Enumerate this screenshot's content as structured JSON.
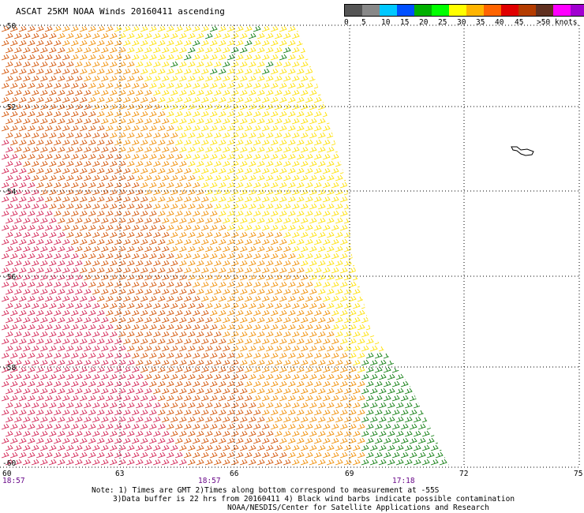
{
  "title": "ASCAT 25KM NOAA Winds 20160411 ascending",
  "legend": {
    "colors": [
      "#555555",
      "#888888",
      "#00c8ff",
      "#0050ff",
      "#00b000",
      "#00ff00",
      "#ffff00",
      "#ffb400",
      "#ff6400",
      "#e00000",
      "#b43c00",
      "#603020",
      "#ff00ff",
      "#a000d0",
      "#200060"
    ],
    "labels": [
      "0",
      "5",
      "10",
      "15",
      "20",
      "25",
      "30",
      "35",
      "40",
      "45",
      ">50 knots"
    ]
  },
  "map": {
    "lat_labels": [
      "-50",
      "-52",
      "-54",
      "-56",
      "-58",
      "-60"
    ],
    "lon_labels": [
      "60",
      "63",
      "66",
      "69",
      "72",
      "75"
    ],
    "time_labels": [
      "18:57",
      "18:57",
      "17:18"
    ],
    "swath_wind_colors": {
      "low": "#0a7a0a",
      "mid": "#ffe000",
      "orange": "#f08c00",
      "high": "#d25000",
      "very_high": "#d21e50"
    }
  },
  "notes": {
    "line1": "Note: 1) Times are GMT 2)Times along bottom correspond to measurement at -55S",
    "line2": "3)Data buffer is 22 hrs from 20160411 4) Black wind barbs indicate possible contamination",
    "line3": "NOAA/NESDIS/Center for Satellite Applications and Research"
  }
}
